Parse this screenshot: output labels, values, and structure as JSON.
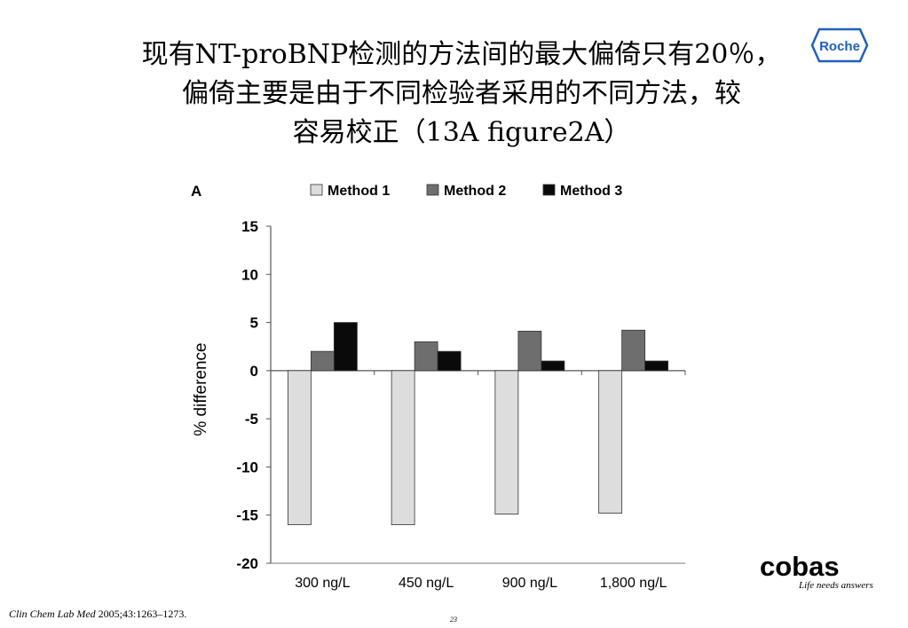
{
  "slide": {
    "title_lines": [
      "现有NT-proBNP检测的方法间的最大偏倚只有20％，",
      "偏倚主要是由于不同检验者采用的不同方法，较",
      "容易校正（13A figure2A）"
    ],
    "roche_logo_text": "Roche",
    "cobas_logo_text": "cobas",
    "cobas_tagline": "Life needs answers",
    "citation_journal": "Clin Chem Lab Med",
    "citation_rest": "2005;43:1263–1273.",
    "page_number": "23"
  },
  "chart_data": {
    "type": "bar",
    "panel_label": "A",
    "categories": [
      "300 ng/L",
      "450 ng/L",
      "900 ng/L",
      "1,800 ng/L"
    ],
    "series": [
      {
        "name": "Method 1",
        "color": "#dddddd",
        "values": [
          -16,
          -16,
          -14.9,
          -14.8
        ]
      },
      {
        "name": "Method 2",
        "color": "#6e6e6e",
        "values": [
          2,
          3,
          4.1,
          4.2
        ]
      },
      {
        "name": "Method 3",
        "color": "#0a0a0a",
        "values": [
          5,
          2,
          1,
          1
        ]
      }
    ],
    "ylabel": "% difference",
    "xlabel": "",
    "ylim": [
      -20,
      15
    ],
    "yticks": [
      15,
      10,
      5,
      0,
      -5,
      -10,
      -15,
      -20
    ],
    "legend_position": "top"
  }
}
